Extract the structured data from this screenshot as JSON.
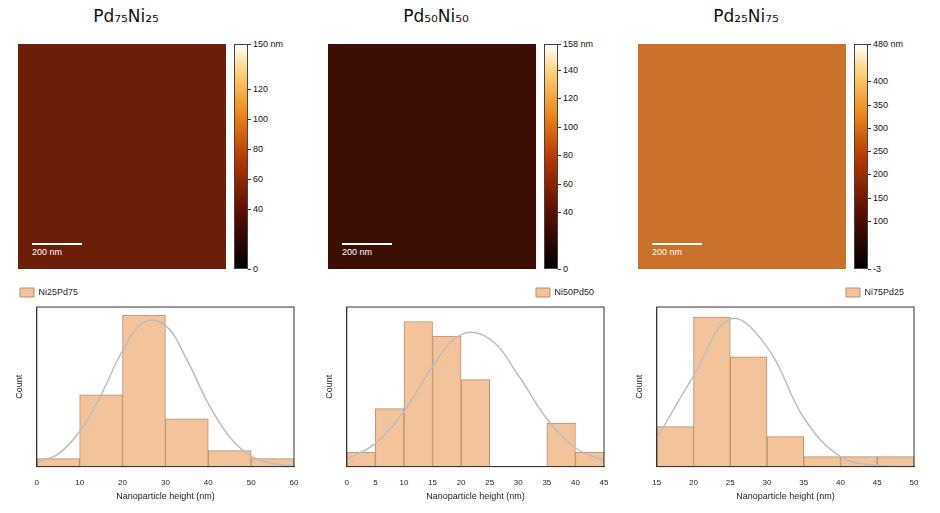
{
  "panels": [
    {
      "title": "Pd₇₅Ni₂₅",
      "scale_bar": "200 nm",
      "colorbar": {
        "range": [
          0,
          150
        ],
        "ticks": [
          {
            "value": 150,
            "label": "150 nm"
          },
          120,
          100,
          80,
          60,
          40,
          0
        ]
      }
    },
    {
      "title": "Pd₅₀Ni₅₀",
      "scale_bar": "200 nm",
      "colorbar": {
        "range": [
          0,
          158
        ],
        "ticks": [
          {
            "value": 158,
            "label": "158 nm"
          },
          140,
          120,
          100,
          80,
          60,
          40,
          0
        ]
      }
    },
    {
      "title": "Pd₂₅Ni₇₅",
      "scale_bar": "200 nm",
      "colorbar": {
        "range": [
          -3,
          480
        ],
        "ticks": [
          {
            "value": 480,
            "label": "480 nm"
          },
          400,
          350,
          300,
          250,
          200,
          150,
          100,
          -3
        ]
      }
    }
  ],
  "chart_data": [
    {
      "type": "histogram",
      "xlabel": "Nanoparticle height (nm)",
      "ylabel": "Count",
      "bins": [
        0,
        10,
        20,
        30,
        40,
        50,
        60
      ],
      "series": [
        {
          "name": "Ni25Pd75",
          "color": "#f3c39b",
          "values": [
            1,
            9,
            19,
            6,
            2,
            1
          ]
        }
      ],
      "fit": {
        "x": [
          0,
          5,
          10,
          15,
          20,
          25,
          30,
          35,
          40,
          45,
          50,
          55,
          60
        ],
        "values": [
          0.5,
          1.6,
          4.4,
          9.0,
          14.5,
          18.1,
          17.7,
          13.4,
          7.9,
          3.7,
          1.3,
          0.4,
          0.1
        ],
        "color": "#bdbdbd"
      },
      "xlim": [
        0,
        60
      ],
      "xticks": [
        0,
        10,
        20,
        30,
        40,
        50,
        60
      ],
      "ylim": [
        0,
        20
      ],
      "tick_labels": "x",
      "grid": false,
      "legend": "top left"
    },
    {
      "type": "histogram",
      "xlabel": "Nanoparticle height (nm)",
      "ylabel": "Count",
      "bins": [
        0,
        5,
        10,
        15,
        20,
        25,
        30,
        35,
        40,
        45
      ],
      "series": [
        {
          "name": "Ni50Pd50",
          "color": "#f3c39b",
          "values": [
            1,
            4,
            10,
            9,
            6,
            0,
            0,
            3,
            1
          ]
        }
      ],
      "fit": {
        "x": [
          0,
          5,
          10,
          15,
          20,
          25,
          30,
          35,
          40,
          45
        ],
        "values": [
          0.5,
          1.6,
          3.8,
          6.9,
          9.1,
          8.8,
          6.3,
          3.3,
          1.3,
          0.4
        ],
        "color": "#bdbdbd"
      },
      "xlim": [
        0,
        45
      ],
      "xticks": [
        0,
        5,
        10,
        15,
        20,
        25,
        30,
        35,
        40,
        45
      ],
      "ylim": [
        0,
        11
      ],
      "tick_labels": "x",
      "grid": false,
      "legend": "top right"
    },
    {
      "type": "histogram",
      "xlabel": "Nanoparticle height (nm)",
      "ylabel": "Count",
      "bins": [
        15,
        20,
        25,
        30,
        35,
        40,
        45,
        50
      ],
      "series": [
        {
          "name": "Ni75Pd25",
          "color": "#f3c39b",
          "values": [
            4,
            15,
            11,
            3,
            1,
            1,
            1
          ]
        }
      ],
      "fit": {
        "x": [
          15,
          20,
          25,
          30,
          35,
          40,
          45,
          50
        ],
        "values": [
          2.8,
          9.1,
          14.8,
          12.0,
          4.9,
          1.0,
          0.1,
          0
        ],
        "color": "#bdbdbd"
      },
      "xlim": [
        15,
        50
      ],
      "xticks": [
        15,
        20,
        25,
        30,
        35,
        40,
        45,
        50
      ],
      "ylim": [
        0,
        16
      ],
      "tick_labels": "x",
      "grid": false,
      "legend": "top right"
    }
  ]
}
